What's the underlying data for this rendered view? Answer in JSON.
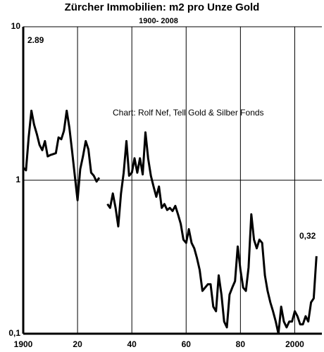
{
  "chart_data": {
    "type": "line",
    "title": "Zürcher Immobilien: m2 pro Unze Gold",
    "subtitle": "1900- 2008",
    "annotations": [
      "2.89",
      "0,32",
      "Chart: Rolf Nef, Tell Gold & Silber Fonds"
    ],
    "x": [
      1900,
      1901,
      1902,
      1903,
      1904,
      1905,
      1906,
      1907,
      1908,
      1909,
      1910,
      1911,
      1912,
      1913,
      1914,
      1915,
      1916,
      1917,
      1918,
      1919,
      1920,
      1921,
      1922,
      1923,
      1924,
      1925,
      1926,
      1927,
      1928,
      1929,
      1930,
      1931,
      1932,
      1933,
      1934,
      1935,
      1936,
      1937,
      1938,
      1939,
      1940,
      1941,
      1942,
      1943,
      1944,
      1945,
      1946,
      1947,
      1948,
      1949,
      1950,
      1951,
      1952,
      1953,
      1954,
      1955,
      1956,
      1957,
      1958,
      1959,
      1960,
      1961,
      1962,
      1963,
      1964,
      1965,
      1966,
      1967,
      1968,
      1969,
      1970,
      1971,
      1972,
      1973,
      1974,
      1975,
      1976,
      1977,
      1978,
      1979,
      1980,
      1981,
      1982,
      1983,
      1984,
      1985,
      1986,
      1987,
      1988,
      1989,
      1990,
      1991,
      1992,
      1993,
      1994,
      1995,
      1996,
      1997,
      1998,
      1999,
      2000,
      2001,
      2002,
      2003,
      2004,
      2005,
      2006,
      2007,
      2008
    ],
    "values": [
      1.21,
      1.16,
      1.9,
      2.84,
      2.3,
      2.0,
      1.7,
      1.57,
      1.8,
      1.43,
      1.46,
      1.48,
      1.5,
      1.9,
      1.85,
      2.1,
      2.84,
      2.2,
      1.54,
      1.07,
      0.74,
      1.18,
      1.43,
      1.8,
      1.59,
      1.12,
      1.07,
      0.98,
      1.04,
      null,
      null,
      0.7,
      0.66,
      0.82,
      0.66,
      0.5,
      0.82,
      1.12,
      1.8,
      1.07,
      1.12,
      1.39,
      1.12,
      1.39,
      1.09,
      2.05,
      1.39,
      1.07,
      0.91,
      0.78,
      0.91,
      0.66,
      0.7,
      0.64,
      0.66,
      0.63,
      0.68,
      0.6,
      0.52,
      0.41,
      0.39,
      0.48,
      0.39,
      0.36,
      0.31,
      0.26,
      0.19,
      0.2,
      0.21,
      0.21,
      0.15,
      0.14,
      0.24,
      0.18,
      0.12,
      0.11,
      0.18,
      0.2,
      0.22,
      0.37,
      0.26,
      0.2,
      0.19,
      0.27,
      0.6,
      0.41,
      0.36,
      0.41,
      0.39,
      0.24,
      0.19,
      0.16,
      0.14,
      0.12,
      0.1,
      0.15,
      0.12,
      0.11,
      0.12,
      0.12,
      0.14,
      0.13,
      0.115,
      0.115,
      0.13,
      0.12,
      0.16,
      0.17,
      0.32
    ],
    "color": "#000000",
    "xlim": [
      1900,
      2010
    ],
    "xticks": [
      1900,
      {
        "value": 1920,
        "label": "20"
      },
      {
        "value": 1940,
        "label": "40"
      },
      {
        "value": 1960,
        "label": "60"
      },
      {
        "value": 1980,
        "label": "80"
      },
      2000
    ],
    "ylim": [
      0.1,
      10
    ],
    "yticks": [
      10,
      1,
      {
        "value": 0.1,
        "label": "0,1"
      }
    ],
    "log_y": true,
    "grid": true
  }
}
